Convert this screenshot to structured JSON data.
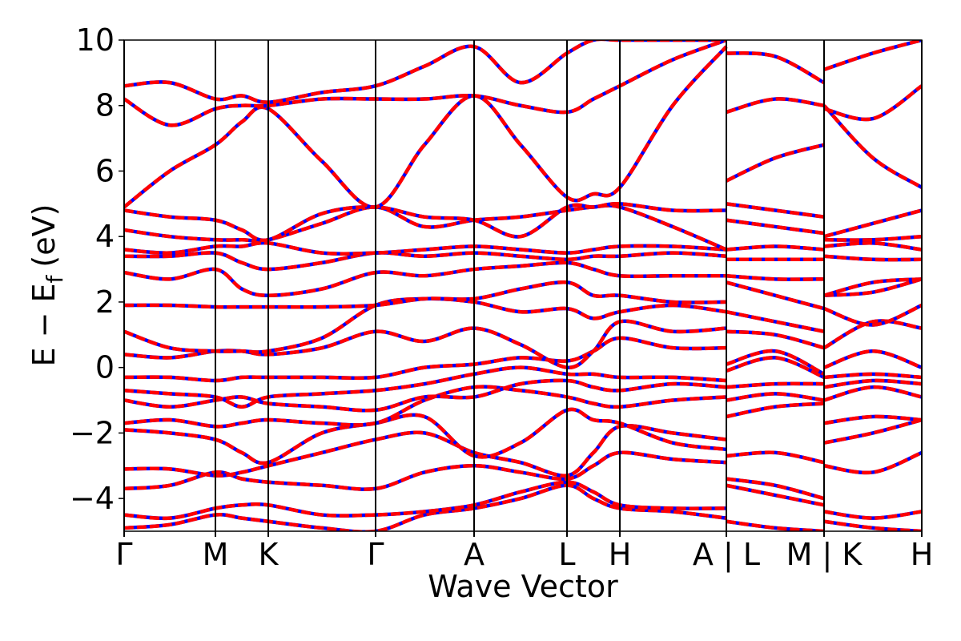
{
  "chart_data": {
    "type": "line",
    "xlabel": "Wave Vector",
    "ylabel": "E − E",
    "ylabel_sub": "f",
    "ylabel_unit": "(eV)",
    "colors": [
      "#0000ff",
      "#ff0000"
    ],
    "x": [
      0,
      0.57,
      1.14,
      1.47,
      1.8,
      2.47,
      3.14,
      3.75,
      4.37,
      4.95,
      5.53,
      5.86,
      6.19,
      6.85,
      7.52,
      7.52,
      8.13,
      8.74,
      8.74,
      9.35,
      9.96
    ],
    "xlim": [
      0,
      9.96
    ],
    "xticks": [
      {
        "value": 0,
        "label": "Γ"
      },
      {
        "value": 1.14,
        "label": "M"
      },
      {
        "value": 1.8,
        "label": "K"
      },
      {
        "value": 3.14,
        "label": "Γ"
      },
      {
        "value": 4.37,
        "label": "A"
      },
      {
        "value": 5.53,
        "label": "L"
      },
      {
        "value": 6.19,
        "label": "H"
      },
      {
        "value": 7.52,
        "label": "A | L"
      },
      {
        "value": 8.74,
        "label": "M | K"
      },
      {
        "value": 9.96,
        "label": "H"
      }
    ],
    "ylim": [
      -5,
      10
    ],
    "yticks": [
      {
        "value": -4,
        "label": "−4"
      },
      {
        "value": -2,
        "label": "−2"
      },
      0,
      2,
      4,
      6,
      8,
      10
    ],
    "series": [
      {
        "values": [
          -4.9,
          -4.8,
          -4.5,
          -4.6,
          -4.7,
          -4.9,
          -5.0,
          -4.5,
          -4.3,
          -4.0,
          -3.6,
          -4.0,
          -4.3,
          -4.4,
          -4.6,
          -4.7,
          -4.9,
          -5.0,
          -4.7,
          -4.9,
          -5.0
        ]
      },
      {
        "values": [
          -4.5,
          -4.6,
          -4.3,
          -4.2,
          -4.2,
          -4.5,
          -4.5,
          -4.4,
          -4.2,
          -3.8,
          -3.5,
          -3.8,
          -4.2,
          -4.3,
          -4.3,
          -3.6,
          -3.9,
          -4.2,
          -4.4,
          -4.6,
          -4.4
        ]
      },
      {
        "values": [
          -3.7,
          -3.6,
          -3.2,
          -3.4,
          -3.5,
          -3.6,
          -3.7,
          -3.2,
          -3.0,
          -3.2,
          -3.4,
          -3.0,
          -2.6,
          -2.8,
          -2.9,
          -3.4,
          -3.6,
          -4.0,
          -3.0,
          -3.2,
          -2.6
        ]
      },
      {
        "values": [
          -3.1,
          -3.1,
          -3.3,
          -3.2,
          -3.0,
          -2.6,
          -2.2,
          -2.0,
          -2.6,
          -2.9,
          -3.3,
          -2.6,
          -1.8,
          -2.0,
          -2.2,
          -2.7,
          -2.6,
          -2.9,
          -2.3,
          -2.0,
          -1.6
        ]
      },
      {
        "values": [
          -1.9,
          -2.0,
          -2.2,
          -2.6,
          -2.9,
          -2.0,
          -1.7,
          -1.5,
          -2.7,
          -2.3,
          -1.3,
          -1.6,
          -1.7,
          -2.3,
          -2.5,
          -1.5,
          -1.2,
          -1.1,
          -1.7,
          -1.5,
          -1.6
        ]
      },
      {
        "values": [
          -1.7,
          -1.6,
          -1.8,
          -1.7,
          -1.6,
          -1.7,
          -1.7,
          -1.0,
          -0.6,
          -0.7,
          -0.9,
          -1.1,
          -1.2,
          -1.0,
          -0.9,
          -1.0,
          -0.8,
          -1.0,
          -1.0,
          -0.6,
          -0.9
        ]
      },
      {
        "values": [
          -1.0,
          -1.2,
          -1.0,
          -0.9,
          -1.1,
          -1.2,
          -1.3,
          -0.9,
          -0.9,
          -0.5,
          -0.4,
          -0.6,
          -0.7,
          -0.5,
          -0.6,
          -0.6,
          -0.5,
          -0.5,
          -0.6,
          -0.4,
          -0.5
        ]
      },
      {
        "values": [
          -0.7,
          -0.8,
          -0.9,
          -1.2,
          -0.9,
          -0.8,
          -0.7,
          -0.5,
          -0.2,
          0.0,
          -0.2,
          -0.2,
          -0.3,
          -0.3,
          -0.4,
          -0.1,
          0.3,
          -0.3,
          -0.3,
          -0.2,
          -0.3
        ]
      },
      {
        "values": [
          -0.3,
          -0.3,
          -0.4,
          -0.3,
          -0.3,
          -0.3,
          -0.3,
          0.0,
          0.1,
          0.3,
          0.2,
          0.5,
          0.9,
          0.6,
          0.6,
          0.1,
          0.5,
          -0.2,
          0.0,
          0.5,
          0.0
        ]
      },
      {
        "values": [
          0.4,
          0.3,
          0.5,
          0.5,
          0.4,
          0.6,
          1.1,
          0.8,
          1.2,
          0.7,
          0.0,
          0.5,
          1.4,
          1.1,
          1.2,
          1.1,
          1.0,
          0.6,
          0.6,
          1.4,
          1.2
        ]
      },
      {
        "values": [
          1.1,
          0.6,
          0.5,
          0.5,
          0.5,
          0.9,
          1.9,
          2.1,
          2.0,
          1.7,
          1.8,
          1.5,
          1.7,
          1.9,
          1.7,
          1.7,
          1.4,
          1.1,
          1.8,
          1.3,
          1.9
        ]
      },
      {
        "values": [
          1.9,
          1.9,
          1.85,
          1.85,
          1.85,
          1.85,
          1.9,
          2.1,
          2.1,
          2.4,
          2.6,
          2.2,
          2.2,
          2.0,
          2.0,
          2.6,
          2.2,
          1.8,
          2.2,
          2.3,
          2.7
        ]
      },
      {
        "values": [
          2.9,
          2.7,
          3.0,
          2.4,
          2.2,
          2.4,
          2.9,
          2.8,
          3.0,
          3.1,
          3.2,
          3.0,
          2.8,
          2.8,
          2.8,
          2.8,
          2.7,
          2.7,
          2.2,
          2.6,
          2.7
        ]
      },
      {
        "values": [
          3.4,
          3.4,
          3.5,
          3.2,
          3.0,
          3.2,
          3.5,
          3.4,
          3.5,
          3.4,
          3.3,
          3.4,
          3.4,
          3.5,
          3.4,
          3.3,
          3.3,
          3.3,
          3.4,
          3.3,
          3.3
        ]
      },
      {
        "values": [
          3.6,
          3.5,
          3.7,
          3.7,
          3.8,
          3.5,
          3.5,
          3.6,
          3.7,
          3.6,
          3.5,
          3.6,
          3.7,
          3.7,
          3.6,
          3.6,
          3.7,
          3.6,
          3.7,
          3.8,
          3.6
        ]
      },
      {
        "values": [
          4.2,
          4.0,
          3.9,
          3.9,
          3.9,
          4.4,
          4.9,
          4.3,
          4.5,
          4.6,
          4.8,
          4.9,
          4.9,
          4.3,
          3.6,
          4.5,
          4.3,
          4.1,
          3.9,
          3.9,
          4.0
        ]
      },
      {
        "values": [
          4.8,
          4.6,
          4.5,
          4.2,
          3.9,
          4.7,
          4.9,
          4.6,
          4.5,
          4.0,
          4.9,
          4.9,
          5.0,
          4.8,
          4.8,
          5.0,
          4.8,
          4.6,
          4.0,
          4.4,
          4.8
        ]
      },
      {
        "values": [
          4.9,
          6.0,
          6.8,
          7.5,
          7.9,
          6.3,
          4.9,
          6.8,
          8.3,
          6.8,
          5.2,
          5.3,
          5.5,
          8.0,
          9.8,
          5.7,
          6.4,
          6.8,
          8.0,
          6.4,
          5.5
        ]
      },
      {
        "values": [
          8.2,
          7.4,
          7.9,
          8.0,
          8.0,
          8.2,
          8.2,
          8.2,
          8.3,
          8.0,
          7.8,
          8.2,
          8.6,
          9.4,
          10.0,
          7.8,
          8.2,
          8.0,
          7.9,
          7.6,
          8.6
        ]
      },
      {
        "values": [
          8.6,
          8.7,
          8.2,
          8.3,
          8.1,
          8.4,
          8.6,
          9.2,
          9.8,
          8.7,
          9.6,
          10.0,
          10.0,
          10.0,
          10.0,
          9.6,
          9.5,
          8.7,
          9.1,
          9.6,
          10.0
        ]
      }
    ]
  }
}
